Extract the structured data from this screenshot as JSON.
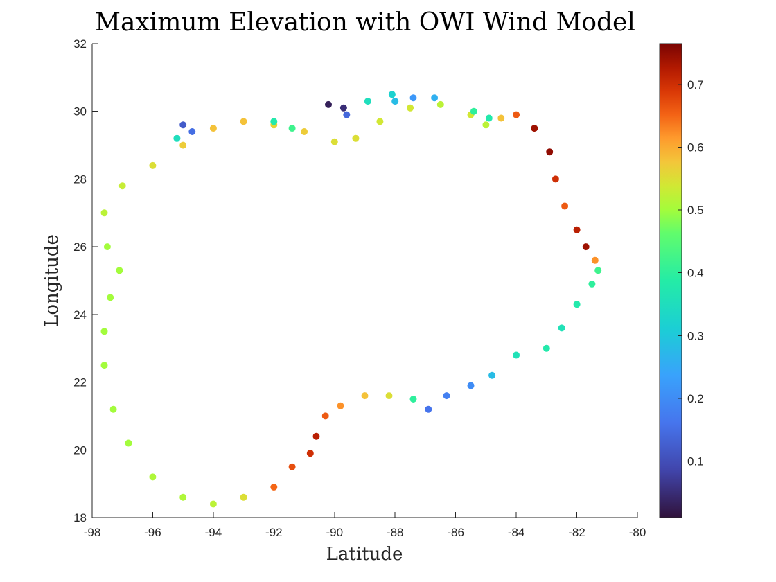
{
  "chart_data": {
    "type": "scatter",
    "title": "Maximum Elevation with OWI Wind Model",
    "xlabel": "Latitude",
    "ylabel": "Longitude",
    "xlim": [
      -98,
      -80
    ],
    "ylim": [
      18,
      32
    ],
    "xticks": [
      -98,
      -96,
      -94,
      -92,
      -90,
      -88,
      -86,
      -84,
      -82,
      -80
    ],
    "yticks": [
      18,
      20,
      22,
      24,
      26,
      28,
      30,
      32
    ],
    "colorbar": {
      "colormap": "turbo",
      "range": [
        0.01,
        0.765
      ],
      "ticks": [
        0.1,
        0.2,
        0.3,
        0.4,
        0.5,
        0.6,
        0.7
      ]
    },
    "grid": false,
    "points": [
      [
        -97.5,
        26.0,
        0.5
      ],
      [
        -97.6,
        27.0,
        0.52
      ],
      [
        -97.0,
        27.8,
        0.53
      ],
      [
        -96.0,
        28.4,
        0.55
      ],
      [
        -95.0,
        29.0,
        0.57
      ],
      [
        -94.0,
        29.5,
        0.58
      ],
      [
        -93.0,
        29.7,
        0.58
      ],
      [
        -92.0,
        29.6,
        0.56
      ],
      [
        -91.0,
        29.4,
        0.57
      ],
      [
        -90.0,
        29.1,
        0.55
      ],
      [
        -89.3,
        29.2,
        0.55
      ],
      [
        -88.5,
        29.7,
        0.54
      ],
      [
        -87.5,
        30.1,
        0.54
      ],
      [
        -86.5,
        30.2,
        0.52
      ],
      [
        -85.5,
        29.9,
        0.54
      ],
      [
        -85.0,
        29.6,
        0.52
      ],
      [
        -84.5,
        29.8,
        0.58
      ],
      [
        -84.0,
        29.9,
        0.66
      ],
      [
        -83.4,
        29.5,
        0.74
      ],
      [
        -82.9,
        28.8,
        0.75
      ],
      [
        -82.7,
        28.0,
        0.7
      ],
      [
        -82.4,
        27.2,
        0.66
      ],
      [
        -82.0,
        26.5,
        0.72
      ],
      [
        -81.7,
        26.0,
        0.74
      ],
      [
        -81.4,
        25.6,
        0.62
      ],
      [
        -81.3,
        25.3,
        0.42
      ],
      [
        -81.5,
        24.9,
        0.4
      ],
      [
        -82.0,
        24.3,
        0.38
      ],
      [
        -82.5,
        23.6,
        0.36
      ],
      [
        -83.0,
        23.0,
        0.38
      ],
      [
        -84.0,
        22.8,
        0.36
      ],
      [
        -84.8,
        22.2,
        0.28
      ],
      [
        -85.5,
        21.9,
        0.2
      ],
      [
        -86.3,
        21.6,
        0.18
      ],
      [
        -86.9,
        21.2,
        0.16
      ],
      [
        -87.4,
        21.5,
        0.4
      ],
      [
        -88.2,
        21.6,
        0.55
      ],
      [
        -89.0,
        21.6,
        0.58
      ],
      [
        -89.8,
        21.3,
        0.62
      ],
      [
        -90.3,
        21.0,
        0.66
      ],
      [
        -90.6,
        20.4,
        0.72
      ],
      [
        -90.8,
        19.9,
        0.7
      ],
      [
        -91.4,
        19.5,
        0.67
      ],
      [
        -92.0,
        18.9,
        0.65
      ],
      [
        -93.0,
        18.6,
        0.55
      ],
      [
        -94.0,
        18.4,
        0.52
      ],
      [
        -95.0,
        18.6,
        0.51
      ],
      [
        -96.0,
        19.2,
        0.51
      ],
      [
        -96.8,
        20.2,
        0.5
      ],
      [
        -97.3,
        21.2,
        0.5
      ],
      [
        -97.6,
        22.5,
        0.5
      ],
      [
        -97.6,
        23.5,
        0.5
      ],
      [
        -97.4,
        24.5,
        0.5
      ],
      [
        -97.1,
        25.3,
        0.5
      ],
      [
        -95.0,
        29.6,
        0.12
      ],
      [
        -94.7,
        29.4,
        0.15
      ],
      [
        -95.2,
        29.2,
        0.35
      ],
      [
        -92.0,
        29.7,
        0.38
      ],
      [
        -91.4,
        29.5,
        0.42
      ],
      [
        -90.2,
        30.2,
        0.03
      ],
      [
        -89.7,
        30.1,
        0.05
      ],
      [
        -89.6,
        29.9,
        0.14
      ],
      [
        -88.9,
        30.3,
        0.35
      ],
      [
        -88.1,
        30.5,
        0.32
      ],
      [
        -88.0,
        30.3,
        0.28
      ],
      [
        -87.4,
        30.4,
        0.22
      ],
      [
        -86.7,
        30.4,
        0.26
      ],
      [
        -85.4,
        30.0,
        0.4
      ],
      [
        -84.9,
        29.8,
        0.38
      ]
    ]
  }
}
